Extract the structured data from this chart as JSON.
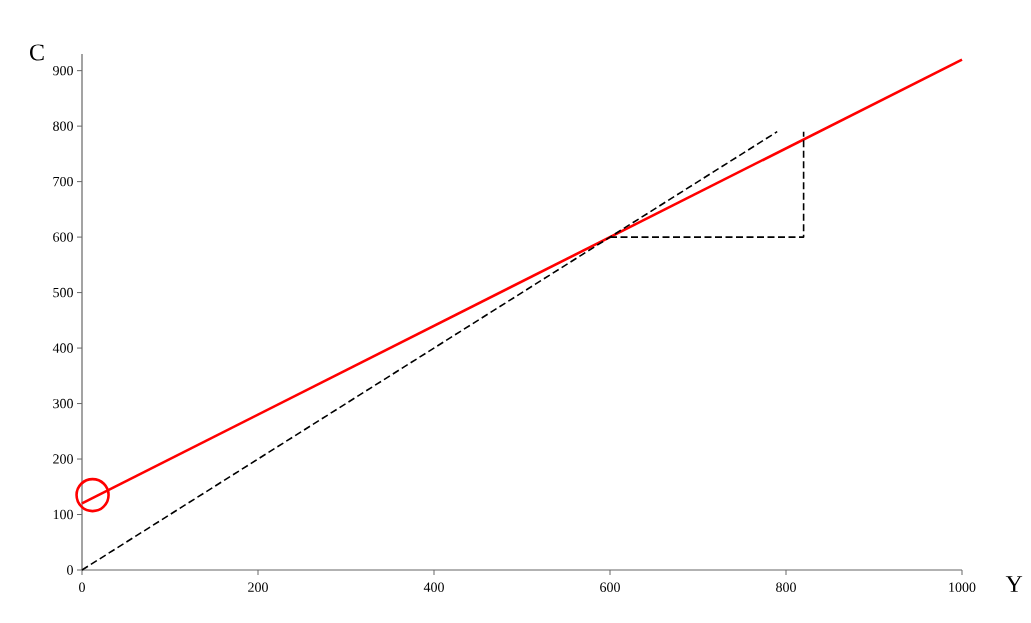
{
  "chart_data": {
    "type": "line",
    "xlabel": "Y",
    "ylabel": "C",
    "xlim": [
      0,
      1000
    ],
    "ylim": [
      0,
      930
    ],
    "xticks": [
      0,
      200,
      400,
      600,
      800,
      1000
    ],
    "yticks": [
      0,
      100,
      200,
      300,
      400,
      500,
      600,
      700,
      800,
      900
    ],
    "grid": false,
    "series": [
      {
        "color": "#ff0000",
        "x": [
          0,
          1000
        ],
        "values": [
          120,
          920
        ],
        "line_style": "solid"
      },
      {
        "color": "#000000",
        "x": [
          0,
          790
        ],
        "values": [
          0,
          790
        ],
        "line_style": "dashed"
      },
      {
        "color": "#000000",
        "x": [
          600,
          820,
          820
        ],
        "values": [
          600,
          600,
          790
        ],
        "line_style": "dashed"
      },
      {
        "type": "scatter",
        "color": "#ff0000",
        "x": [
          12
        ],
        "values": [
          135
        ],
        "marker": "circle"
      }
    ]
  }
}
